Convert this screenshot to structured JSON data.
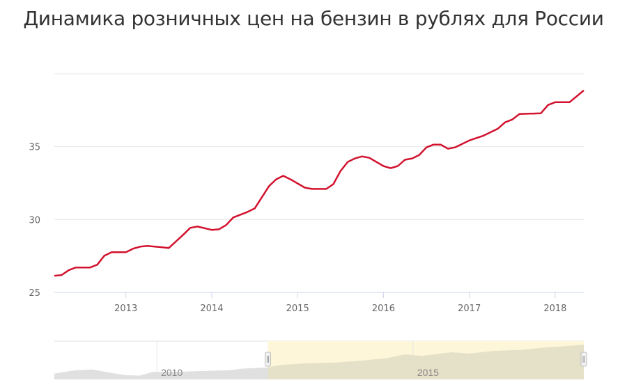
{
  "title": "Динамика розничных цен на бензин в рублях для России",
  "colors": {
    "line": "#d2122e",
    "grid": "#e6e6e6",
    "axis": "#ccd6eb",
    "navigator_area": "#e0e0e0",
    "navigator_selection": "#fdf6d8"
  },
  "chart_data": {
    "type": "line",
    "title": "Динамика розничных цен на бензин в рублях для России",
    "xlabel": "",
    "ylabel": "",
    "xlim": [
      "2012-03",
      "2018-05"
    ],
    "ylim": [
      25,
      40
    ],
    "yticks": [
      25,
      30,
      35
    ],
    "xticks": [
      "2013",
      "2014",
      "2015",
      "2016",
      "2017",
      "2018"
    ],
    "grid": true,
    "series": [
      {
        "points": [
          [
            "2012-03",
            26.14
          ],
          [
            "2012-04",
            26.19
          ],
          [
            "2012-05",
            26.52
          ],
          [
            "2012-06",
            26.71
          ],
          [
            "2012-08",
            26.71
          ],
          [
            "2012-09",
            26.9
          ],
          [
            "2012-10",
            27.52
          ],
          [
            "2012-11",
            27.76
          ],
          [
            "2013-01",
            27.76
          ],
          [
            "2013-02",
            28.0
          ],
          [
            "2013-03",
            28.14
          ],
          [
            "2013-04",
            28.19
          ],
          [
            "2013-06",
            28.1
          ],
          [
            "2013-07",
            28.05
          ],
          [
            "2013-09",
            28.95
          ],
          [
            "2013-10",
            29.43
          ],
          [
            "2013-11",
            29.52
          ],
          [
            "2014-01",
            29.29
          ],
          [
            "2014-02",
            29.33
          ],
          [
            "2014-03",
            29.62
          ],
          [
            "2014-04",
            30.14
          ],
          [
            "2014-05",
            30.33
          ],
          [
            "2014-06",
            30.52
          ],
          [
            "2014-07",
            30.76
          ],
          [
            "2014-09",
            32.29
          ],
          [
            "2014-10",
            32.76
          ],
          [
            "2014-11",
            33.0
          ],
          [
            "2014-12",
            32.76
          ],
          [
            "2015-02",
            32.19
          ],
          [
            "2015-03",
            32.1
          ],
          [
            "2015-05",
            32.1
          ],
          [
            "2015-06",
            32.43
          ],
          [
            "2015-07",
            33.33
          ],
          [
            "2015-08",
            33.95
          ],
          [
            "2015-09",
            34.19
          ],
          [
            "2015-10",
            34.33
          ],
          [
            "2015-11",
            34.24
          ],
          [
            "2016-01",
            33.67
          ],
          [
            "2016-02",
            33.52
          ],
          [
            "2016-03",
            33.67
          ],
          [
            "2016-04",
            34.1
          ],
          [
            "2016-05",
            34.19
          ],
          [
            "2016-06",
            34.43
          ],
          [
            "2016-07",
            34.95
          ],
          [
            "2016-08",
            35.14
          ],
          [
            "2016-09",
            35.14
          ],
          [
            "2016-10",
            34.86
          ],
          [
            "2016-11",
            34.95
          ],
          [
            "2017-01",
            35.43
          ],
          [
            "2017-03",
            35.76
          ],
          [
            "2017-05",
            36.24
          ],
          [
            "2017-06",
            36.67
          ],
          [
            "2017-07",
            36.86
          ],
          [
            "2017-08",
            37.24
          ],
          [
            "2017-11",
            37.29
          ],
          [
            "2017-12",
            37.86
          ],
          [
            "2018-01",
            38.05
          ],
          [
            "2018-03",
            38.05
          ],
          [
            "2018-05",
            38.86
          ]
        ]
      }
    ],
    "navigator": {
      "xlim": [
        "2008-01",
        "2018-05"
      ],
      "labels": [
        "2010",
        "2015"
      ],
      "selection": [
        "2012-03",
        "2018-05"
      ],
      "points": [
        [
          "2008-01",
          21.5
        ],
        [
          "2008-06",
          23.5
        ],
        [
          "2008-10",
          24
        ],
        [
          "2009-02",
          22
        ],
        [
          "2009-06",
          20.5
        ],
        [
          "2009-09",
          20.3
        ],
        [
          "2009-12",
          22.5
        ],
        [
          "2010-06",
          22.6
        ],
        [
          "2011-01",
          23.2
        ],
        [
          "2011-06",
          23.5
        ],
        [
          "2011-09",
          24.5
        ],
        [
          "2012-03",
          25.2
        ],
        [
          "2012-06",
          26.7
        ],
        [
          "2013-01",
          27.8
        ],
        [
          "2013-07",
          28.1
        ],
        [
          "2014-01",
          29.3
        ],
        [
          "2014-07",
          30.8
        ],
        [
          "2014-11",
          33
        ],
        [
          "2015-03",
          32.1
        ],
        [
          "2015-10",
          34.3
        ],
        [
          "2016-02",
          33.5
        ],
        [
          "2016-08",
          35.1
        ],
        [
          "2017-03",
          35.8
        ],
        [
          "2017-08",
          37.2
        ],
        [
          "2018-01",
          38
        ],
        [
          "2018-05",
          38.9
        ]
      ]
    }
  }
}
